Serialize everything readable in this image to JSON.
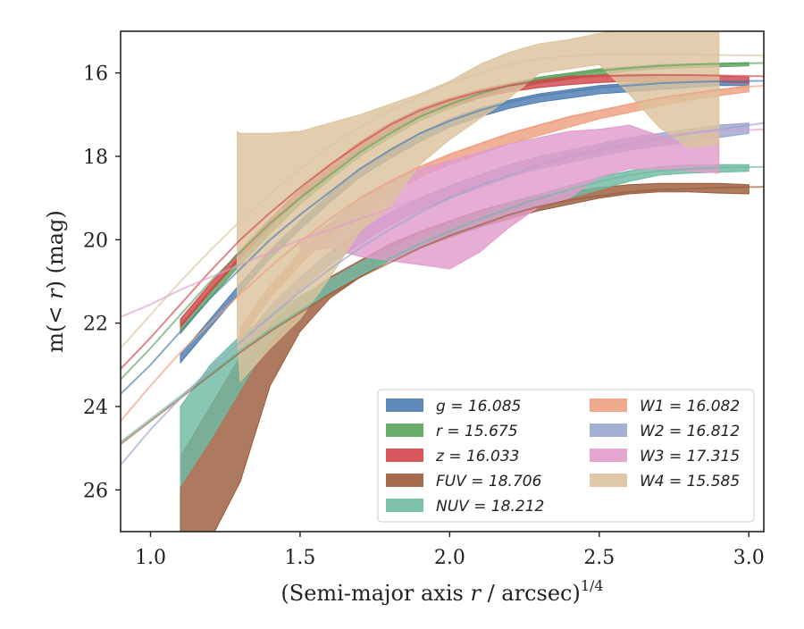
{
  "chart_data": {
    "type": "line",
    "title": "",
    "xlabel_pre": "(Semi-major axis ",
    "xlabel_var": "r",
    "xlabel_post": " / arcsec)",
    "xlabel_sup": "1/4",
    "ylabel_pre": "m(< ",
    "ylabel_var": "r",
    "ylabel_post": ") (mag)",
    "xlim": [
      0.9,
      3.05
    ],
    "ylim": [
      27.0,
      15.0
    ],
    "y_inverted": true,
    "xticks": [
      1.0,
      1.5,
      2.0,
      2.5,
      3.0
    ],
    "xtick_labels": [
      "1.0",
      "1.5",
      "2.0",
      "2.5",
      "3.0"
    ],
    "yticks": [
      16,
      18,
      20,
      22,
      24,
      26
    ],
    "ytick_labels": [
      "16",
      "18",
      "20",
      "22",
      "24",
      "26"
    ],
    "grid": false,
    "legend_position": "lower-right",
    "legend_columns": 2,
    "series": [
      {
        "name": "g = 16.085",
        "var": "g",
        "value": "16.085",
        "color": "#4c7cb0",
        "x": [
          1.1,
          1.2,
          1.3,
          1.4,
          1.5,
          1.6,
          1.7,
          1.8,
          1.9,
          2.0,
          2.1,
          2.2,
          2.3,
          2.4,
          2.5,
          2.6,
          2.7,
          2.8,
          2.9,
          3.0
        ],
        "y_low": [
          22.75,
          21.9,
          21.05,
          20.25,
          19.55,
          18.9,
          18.3,
          17.85,
          17.45,
          17.1,
          16.85,
          16.65,
          16.5,
          16.4,
          16.3,
          16.25,
          16.2,
          16.2,
          16.2,
          16.2
        ],
        "y_high": [
          22.95,
          22.1,
          21.25,
          20.45,
          19.75,
          19.1,
          18.5,
          18.05,
          17.65,
          17.3,
          17.05,
          16.85,
          16.7,
          16.6,
          16.5,
          16.45,
          16.4,
          16.35,
          16.3,
          16.3
        ],
        "extrap_x": [
          0.9,
          1.0,
          1.1,
          1.2,
          1.3,
          1.4,
          1.5,
          1.6,
          1.7,
          1.8,
          1.9,
          2.0,
          2.1,
          2.2,
          2.3,
          2.4,
          2.5,
          2.6,
          2.7,
          2.8,
          2.9,
          3.05
        ],
        "extrap_y": [
          23.7,
          23.0,
          22.2,
          21.4,
          20.7,
          20.0,
          19.4,
          18.85,
          18.3,
          17.85,
          17.45,
          17.15,
          16.9,
          16.7,
          16.55,
          16.45,
          16.35,
          16.3,
          16.25,
          16.22,
          16.2,
          16.19
        ]
      },
      {
        "name": "r = 15.675",
        "var": "r",
        "value": "15.675",
        "color": "#5aa35a",
        "x": [
          1.1,
          1.2,
          1.3,
          1.4,
          1.5,
          1.6,
          1.7,
          1.8,
          1.9,
          2.0,
          2.1,
          2.2,
          2.3,
          2.4,
          2.5,
          2.6,
          2.7,
          2.8,
          2.9,
          3.0
        ],
        "y_low": [
          22.05,
          21.2,
          20.4,
          19.65,
          18.95,
          18.35,
          17.8,
          17.35,
          16.95,
          16.65,
          16.45,
          16.25,
          16.1,
          16.0,
          15.9,
          15.85,
          15.8,
          15.78,
          15.77,
          15.75
        ],
        "y_high": [
          22.25,
          21.4,
          20.6,
          19.85,
          19.15,
          18.55,
          18.0,
          17.55,
          17.15,
          16.85,
          16.6,
          16.4,
          16.25,
          16.15,
          16.05,
          15.95,
          15.9,
          15.87,
          15.85,
          15.83
        ],
        "extrap_x": [
          0.9,
          1.0,
          1.1,
          1.2,
          1.3,
          1.4,
          1.5,
          1.6,
          1.7,
          1.8,
          1.9,
          2.0,
          2.1,
          2.2,
          2.3,
          2.4,
          2.5,
          2.6,
          2.7,
          2.8,
          2.9,
          3.05
        ],
        "extrap_y": [
          23.35,
          22.6,
          21.8,
          21.0,
          20.3,
          19.6,
          19.0,
          18.45,
          17.9,
          17.45,
          17.05,
          16.75,
          16.5,
          16.3,
          16.15,
          16.05,
          15.95,
          15.88,
          15.83,
          15.8,
          15.78,
          15.76
        ]
      },
      {
        "name": "z = 16.033",
        "var": "z",
        "value": "16.033",
        "color": "#d1454a",
        "x": [
          1.1,
          1.2,
          1.3,
          1.4,
          1.5,
          1.6,
          1.7,
          1.8,
          1.9,
          2.0,
          2.1,
          2.2,
          2.3,
          2.4,
          2.5,
          2.6,
          2.7,
          2.8,
          2.9,
          3.0
        ],
        "y_low": [
          21.9,
          21.05,
          20.25,
          19.5,
          18.8,
          18.2,
          17.65,
          17.2,
          16.85,
          16.6,
          16.4,
          16.25,
          16.15,
          16.08,
          16.05,
          16.03,
          16.03,
          16.05,
          16.07,
          16.1
        ],
        "y_high": [
          22.1,
          21.25,
          20.45,
          19.7,
          19.0,
          18.4,
          17.85,
          17.4,
          17.05,
          16.8,
          16.6,
          16.45,
          16.35,
          16.28,
          16.23,
          16.2,
          16.2,
          16.2,
          16.22,
          16.24
        ],
        "extrap_x": [
          0.9,
          1.0,
          1.1,
          1.2,
          1.3,
          1.4,
          1.5,
          1.6,
          1.7,
          1.8,
          1.9,
          2.0,
          2.1,
          2.2,
          2.3,
          2.4,
          2.5,
          2.6,
          2.7,
          2.8,
          2.9,
          3.05
        ],
        "extrap_y": [
          23.1,
          22.35,
          21.55,
          20.75,
          20.0,
          19.35,
          18.75,
          18.2,
          17.7,
          17.25,
          16.9,
          16.65,
          16.45,
          16.3,
          16.2,
          16.12,
          16.08,
          16.06,
          16.05,
          16.05,
          16.06,
          16.08
        ]
      },
      {
        "name": "FUV = 18.706",
        "var": "FUV",
        "value": "18.706",
        "color": "#9b5c3c",
        "x": [
          1.1,
          1.2,
          1.3,
          1.4,
          1.5,
          1.6,
          1.7,
          1.8,
          1.9,
          2.0,
          2.1,
          2.2,
          2.3,
          2.4,
          2.5,
          2.6,
          2.7,
          2.8,
          2.9,
          3.0
        ],
        "y_low": [
          25.2,
          24.0,
          22.8,
          22.0,
          21.4,
          20.9,
          20.5,
          20.1,
          19.8,
          19.55,
          19.3,
          19.1,
          18.95,
          18.85,
          18.75,
          18.68,
          18.65,
          18.65,
          18.65,
          18.68
        ],
        "y_high": [
          27.2,
          27.2,
          25.8,
          23.5,
          22.2,
          21.4,
          20.9,
          20.5,
          20.2,
          19.95,
          19.7,
          19.5,
          19.3,
          19.15,
          19.0,
          18.9,
          18.85,
          18.85,
          18.88,
          18.9
        ],
        "extrap_x": [
          0.9,
          1.0,
          1.1,
          1.2,
          1.3,
          1.4,
          1.5,
          1.6,
          1.7,
          1.8,
          1.9,
          2.0,
          2.1,
          2.2,
          2.3,
          2.4,
          2.5,
          2.6,
          2.7,
          2.8,
          2.9,
          3.05
        ],
        "extrap_y": [
          24.9,
          24.35,
          23.8,
          23.25,
          22.7,
          22.2,
          21.75,
          21.3,
          20.9,
          20.55,
          20.2,
          19.9,
          19.65,
          19.4,
          19.2,
          19.05,
          18.95,
          18.85,
          18.8,
          18.78,
          18.75,
          18.73
        ]
      },
      {
        "name": "NUV = 18.212",
        "var": "NUV",
        "value": "18.212",
        "color": "#6fbaa2",
        "x": [
          1.1,
          1.2,
          1.3,
          1.4,
          1.5,
          1.6,
          1.7,
          1.8,
          1.9,
          2.0,
          2.1,
          2.2,
          2.3,
          2.4,
          2.5,
          2.6,
          2.7,
          2.8,
          2.9,
          3.0
        ],
        "y_low": [
          24.0,
          23.0,
          22.3,
          21.8,
          21.35,
          20.95,
          20.55,
          20.2,
          19.9,
          19.6,
          19.35,
          19.1,
          18.9,
          18.7,
          18.5,
          18.35,
          18.25,
          18.2,
          18.2,
          18.2
        ],
        "y_high": [
          25.9,
          24.8,
          23.6,
          22.4,
          21.7,
          21.25,
          20.85,
          20.5,
          20.2,
          19.9,
          19.65,
          19.4,
          19.2,
          19.0,
          18.8,
          18.6,
          18.45,
          18.4,
          18.38,
          18.36
        ],
        "extrap_x": [
          0.9,
          1.0,
          1.1,
          1.2,
          1.3,
          1.4,
          1.5,
          1.6,
          1.7,
          1.8,
          1.9,
          2.0,
          2.1,
          2.2,
          2.3,
          2.4,
          2.5,
          2.6,
          2.7,
          2.8,
          2.9,
          3.05
        ],
        "extrap_y": [
          24.85,
          24.3,
          23.75,
          23.2,
          22.65,
          22.15,
          21.7,
          21.25,
          20.85,
          20.45,
          20.1,
          19.8,
          19.5,
          19.25,
          19.0,
          18.8,
          18.6,
          18.45,
          18.35,
          18.3,
          18.27,
          18.25
        ]
      },
      {
        "name": "W1 = 16.082",
        "var": "W1",
        "value": "16.082",
        "color": "#eda080",
        "x": [
          1.3,
          1.4,
          1.5,
          1.6,
          1.7,
          1.8,
          1.9,
          2.0,
          2.1,
          2.2,
          2.3,
          2.4,
          2.5,
          2.6,
          2.7,
          2.8,
          2.9,
          3.0
        ],
        "y_low": [
          22.1,
          21.1,
          20.3,
          19.6,
          19.05,
          18.6,
          18.25,
          17.95,
          17.7,
          17.45,
          17.25,
          17.05,
          16.9,
          16.75,
          16.6,
          16.5,
          16.4,
          16.3
        ],
        "y_high": [
          22.4,
          21.4,
          20.6,
          19.9,
          19.35,
          18.9,
          18.5,
          18.2,
          17.95,
          17.7,
          17.5,
          17.3,
          17.1,
          16.95,
          16.8,
          16.65,
          16.55,
          16.45
        ],
        "extrap_x": [
          0.9,
          1.0,
          1.1,
          1.2,
          1.3,
          1.4,
          1.5,
          1.6,
          1.7,
          1.8,
          1.9,
          2.0,
          2.1,
          2.2,
          2.3,
          2.4,
          2.5,
          2.6,
          2.7,
          2.8,
          2.9,
          3.05
        ],
        "extrap_y": [
          24.35,
          23.5,
          22.7,
          22.0,
          21.3,
          20.65,
          20.05,
          19.5,
          19.0,
          18.6,
          18.25,
          17.95,
          17.7,
          17.45,
          17.25,
          17.05,
          16.9,
          16.75,
          16.6,
          16.5,
          16.4,
          16.3
        ]
      },
      {
        "name": "W2 = 16.812",
        "var": "W2",
        "value": "16.812",
        "color": "#9aa6cf",
        "x": [
          1.3,
          1.4,
          1.5,
          1.6,
          1.7,
          1.8,
          1.9,
          2.0,
          2.1,
          2.2,
          2.3,
          2.4,
          2.5,
          2.6,
          2.7,
          2.8,
          2.9,
          3.0
        ],
        "y_low": [
          22.5,
          21.6,
          20.9,
          20.3,
          19.8,
          19.35,
          19.0,
          18.7,
          18.45,
          18.2,
          18.0,
          17.85,
          17.7,
          17.55,
          17.45,
          17.35,
          17.25,
          17.2
        ],
        "y_high": [
          22.8,
          21.9,
          21.2,
          20.6,
          20.1,
          19.65,
          19.3,
          19.0,
          18.75,
          18.5,
          18.3,
          18.15,
          18.0,
          17.85,
          17.75,
          17.65,
          17.55,
          17.45
        ],
        "extrap_x": [
          0.9,
          1.0,
          1.1,
          1.2,
          1.3,
          1.4,
          1.5,
          1.6,
          1.7,
          1.8,
          1.9,
          2.0,
          2.1,
          2.2,
          2.3,
          2.4,
          2.5,
          2.6,
          2.7,
          2.8,
          2.9,
          3.05
        ],
        "extrap_y": [
          25.4,
          24.55,
          23.8,
          23.1,
          22.45,
          21.85,
          21.25,
          20.7,
          20.2,
          19.75,
          19.35,
          19.0,
          18.7,
          18.45,
          18.2,
          18.0,
          17.85,
          17.7,
          17.55,
          17.45,
          17.35,
          17.2
        ]
      },
      {
        "name": "W3 = 17.315",
        "var": "W3",
        "value": "17.315",
        "color": "#e19ccb",
        "x": [
          1.5,
          1.6,
          1.7,
          1.8,
          1.9,
          2.0,
          2.1,
          2.2,
          2.3,
          2.4,
          2.5,
          2.6,
          2.7,
          2.8,
          2.9
        ],
        "y_low": [
          20.1,
          19.6,
          19.0,
          18.6,
          18.3,
          18.1,
          17.9,
          17.7,
          17.55,
          17.4,
          17.35,
          17.25,
          17.5,
          17.7,
          17.4
        ],
        "y_high": [
          20.3,
          20.2,
          20.4,
          20.5,
          20.6,
          20.7,
          20.3,
          19.7,
          19.2,
          19.0,
          18.5,
          18.3,
          18.3,
          18.35,
          18.4
        ],
        "extrap_x": [
          0.9,
          1.0,
          1.1,
          1.2,
          1.3,
          1.4,
          1.5,
          1.6,
          1.7,
          1.8,
          1.9,
          2.0,
          2.1,
          2.2,
          2.3,
          2.4,
          2.5,
          2.6,
          2.7,
          2.8,
          2.9,
          3.05
        ],
        "extrap_y": [
          21.85,
          21.55,
          21.2,
          20.9,
          20.6,
          20.3,
          20.0,
          19.75,
          19.5,
          19.25,
          19.0,
          18.8,
          18.6,
          18.4,
          18.2,
          18.0,
          17.85,
          17.7,
          17.55,
          17.45,
          17.4,
          17.35
        ]
      },
      {
        "name": "W4 = 15.585",
        "var": "W4",
        "value": "15.585",
        "color": "#dcc39e",
        "x": [
          1.29,
          1.3,
          1.4,
          1.5,
          1.6,
          1.7,
          1.8,
          1.9,
          2.0,
          2.1,
          2.2,
          2.3,
          2.4,
          2.5,
          2.6,
          2.7,
          2.8,
          2.9
        ],
        "y_low": [
          17.4,
          17.45,
          17.45,
          17.4,
          17.2,
          17.0,
          16.75,
          16.5,
          16.2,
          15.8,
          15.5,
          15.3,
          15.2,
          15.05,
          14.95,
          14.95,
          14.95,
          14.95
        ],
        "y_high": [
          22.3,
          23.4,
          22.6,
          21.9,
          20.9,
          19.8,
          19.2,
          18.2,
          17.6,
          17.1,
          16.6,
          16.0,
          15.9,
          15.8,
          16.5,
          17.3,
          17.8,
          17.7
        ],
        "extrap_x": [
          0.9,
          1.0,
          1.1,
          1.2,
          1.3,
          1.4,
          1.5,
          1.6,
          1.7,
          1.8,
          1.9,
          2.0,
          2.1,
          2.2,
          2.3,
          2.4,
          2.5,
          2.6,
          2.7,
          2.8,
          2.9,
          3.05
        ],
        "extrap_y": [
          22.6,
          21.8,
          21.0,
          20.25,
          19.55,
          18.9,
          18.3,
          17.75,
          17.3,
          16.9,
          16.55,
          16.25,
          16.0,
          15.8,
          15.65,
          15.6,
          15.55,
          15.55,
          15.55,
          15.56,
          15.57,
          15.58
        ]
      }
    ]
  }
}
